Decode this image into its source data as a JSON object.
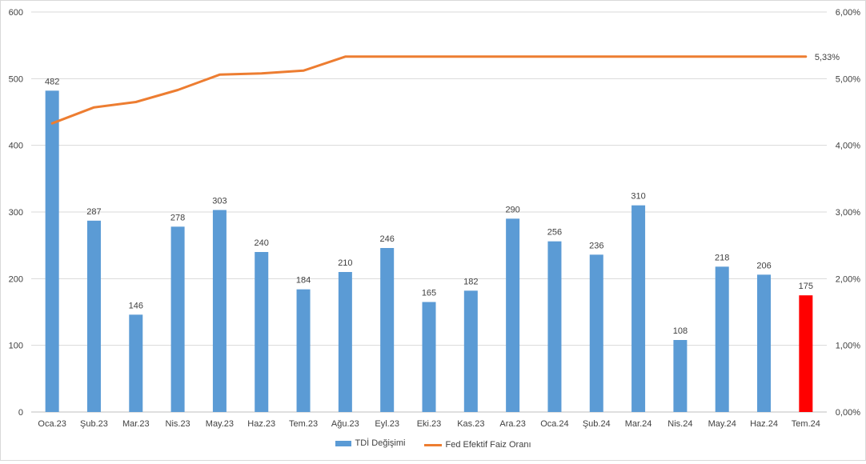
{
  "chart_data": {
    "type": "bar+line",
    "categories": [
      "Oca.23",
      "Şub.23",
      "Mar.23",
      "Nis.23",
      "May.23",
      "Haz.23",
      "Tem.23",
      "Ağu.23",
      "Eyl.23",
      "Eki.23",
      "Kas.23",
      "Ara.23",
      "Oca.24",
      "Şub.24",
      "Mar.24",
      "Nis.24",
      "May.24",
      "Haz.24",
      "Tem.24"
    ],
    "series": [
      {
        "name": "TDİ Değişimi",
        "type": "bar",
        "axis": "left",
        "color": "#5b9bd5",
        "highlight_color": "#ff0000",
        "highlight_index": 18,
        "values": [
          482,
          287,
          146,
          278,
          303,
          240,
          184,
          210,
          246,
          165,
          182,
          290,
          256,
          236,
          310,
          108,
          218,
          206,
          175
        ],
        "labels": [
          "482",
          "287",
          "146",
          "278",
          "303",
          "240",
          "184",
          "210",
          "246",
          "165",
          "182",
          "290",
          "256",
          "236",
          "310",
          "108",
          "218",
          "206",
          "175"
        ]
      },
      {
        "name": "Fed Efektif Faiz Oranı",
        "type": "line",
        "axis": "right",
        "color": "#ed7d31",
        "values": [
          4.33,
          4.57,
          4.65,
          4.83,
          5.06,
          5.08,
          5.12,
          5.33,
          5.33,
          5.33,
          5.33,
          5.33,
          5.33,
          5.33,
          5.33,
          5.33,
          5.33,
          5.33,
          5.33
        ],
        "end_label": "5,33%"
      }
    ],
    "y_left": {
      "ylim": [
        0,
        600
      ],
      "ticks": [
        "0",
        "100",
        "200",
        "300",
        "400",
        "500",
        "600"
      ]
    },
    "y_right": {
      "ylim": [
        0,
        6
      ],
      "ticks": [
        "0,00%",
        "1,00%",
        "2,00%",
        "3,00%",
        "4,00%",
        "5,00%",
        "6,00%"
      ]
    },
    "grid": true,
    "legend_placement": "bottom"
  }
}
